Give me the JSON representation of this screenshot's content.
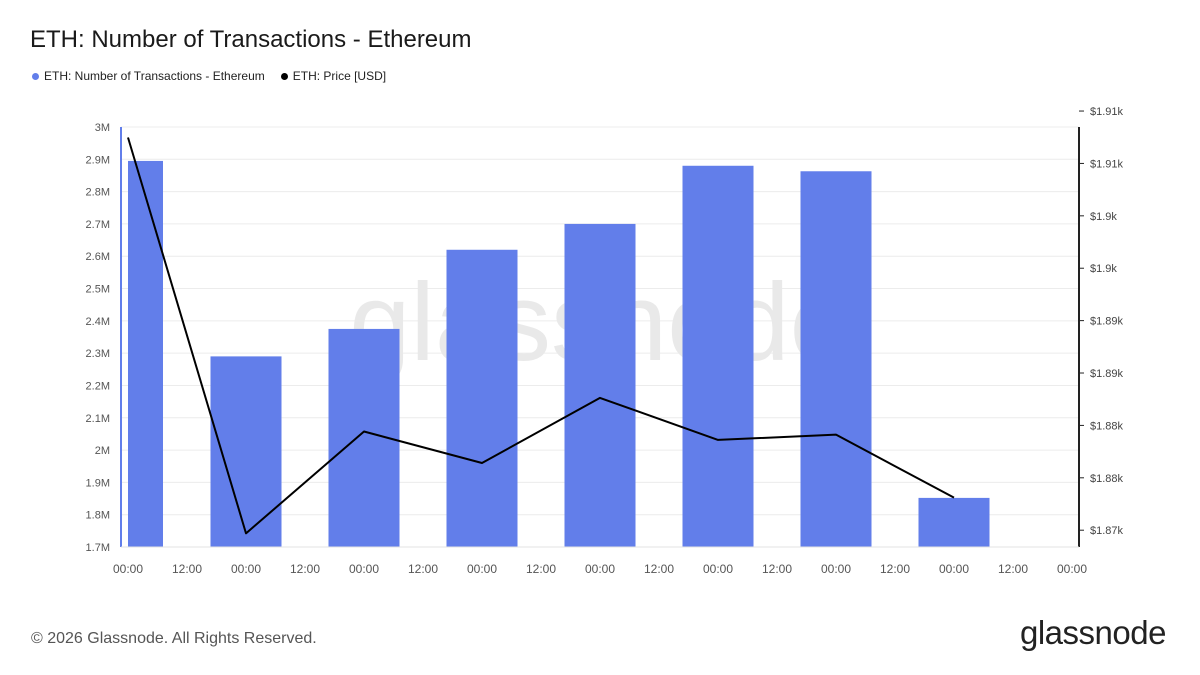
{
  "header": {
    "title": "ETH: Number of Transactions - Ethereum"
  },
  "legend": [
    {
      "label": "ETH: Number of Transactions - Ethereum",
      "color": "#627eea"
    },
    {
      "label": "ETH: Price [USD]",
      "color": "#000000"
    }
  ],
  "footer": {
    "copyright": "© 2026 Glassnode. All Rights Reserved.",
    "logo_text": "glassnode",
    "watermark": "glassnode"
  },
  "chart_data": {
    "type": "bar",
    "x_tick_labels": [
      "00:00",
      "12:00",
      "00:00",
      "12:00",
      "00:00",
      "12:00",
      "00:00",
      "12:00",
      "00:00",
      "12:00",
      "00:00",
      "12:00",
      "00:00",
      "12:00",
      "00:00",
      "12:00",
      "00:00"
    ],
    "y_left_ticks": [
      "1.7M",
      "1.8M",
      "1.9M",
      "2M",
      "2.1M",
      "2.2M",
      "2.3M",
      "2.4M",
      "2.5M",
      "2.6M",
      "2.7M",
      "2.8M",
      "2.9M",
      "3M"
    ],
    "y_left_range": [
      1700000,
      3000000
    ],
    "y_right_ticks": [
      "$1.87k",
      "$1.88k",
      "$1.88k",
      "$1.89k",
      "$1.89k",
      "$1.9k",
      "$1.9k",
      "$1.91k",
      "$1.91k"
    ],
    "y_right_range": [
      1872,
      1912
    ],
    "series": [
      {
        "name": "ETH: Number of Transactions - Ethereum",
        "type": "bar",
        "axis": "left",
        "color": "#627eea",
        "values": [
          2895000,
          2290000,
          2375000,
          2620000,
          2700000,
          2880000,
          2863000,
          1852000
        ]
      },
      {
        "name": "ETH: Price [USD]",
        "type": "line",
        "axis": "right",
        "color": "#000000",
        "values": [
          1911.0,
          1873.3,
          1883.0,
          1880.0,
          1886.2,
          1882.2,
          1882.7,
          1876.7
        ]
      }
    ],
    "grid": true
  }
}
